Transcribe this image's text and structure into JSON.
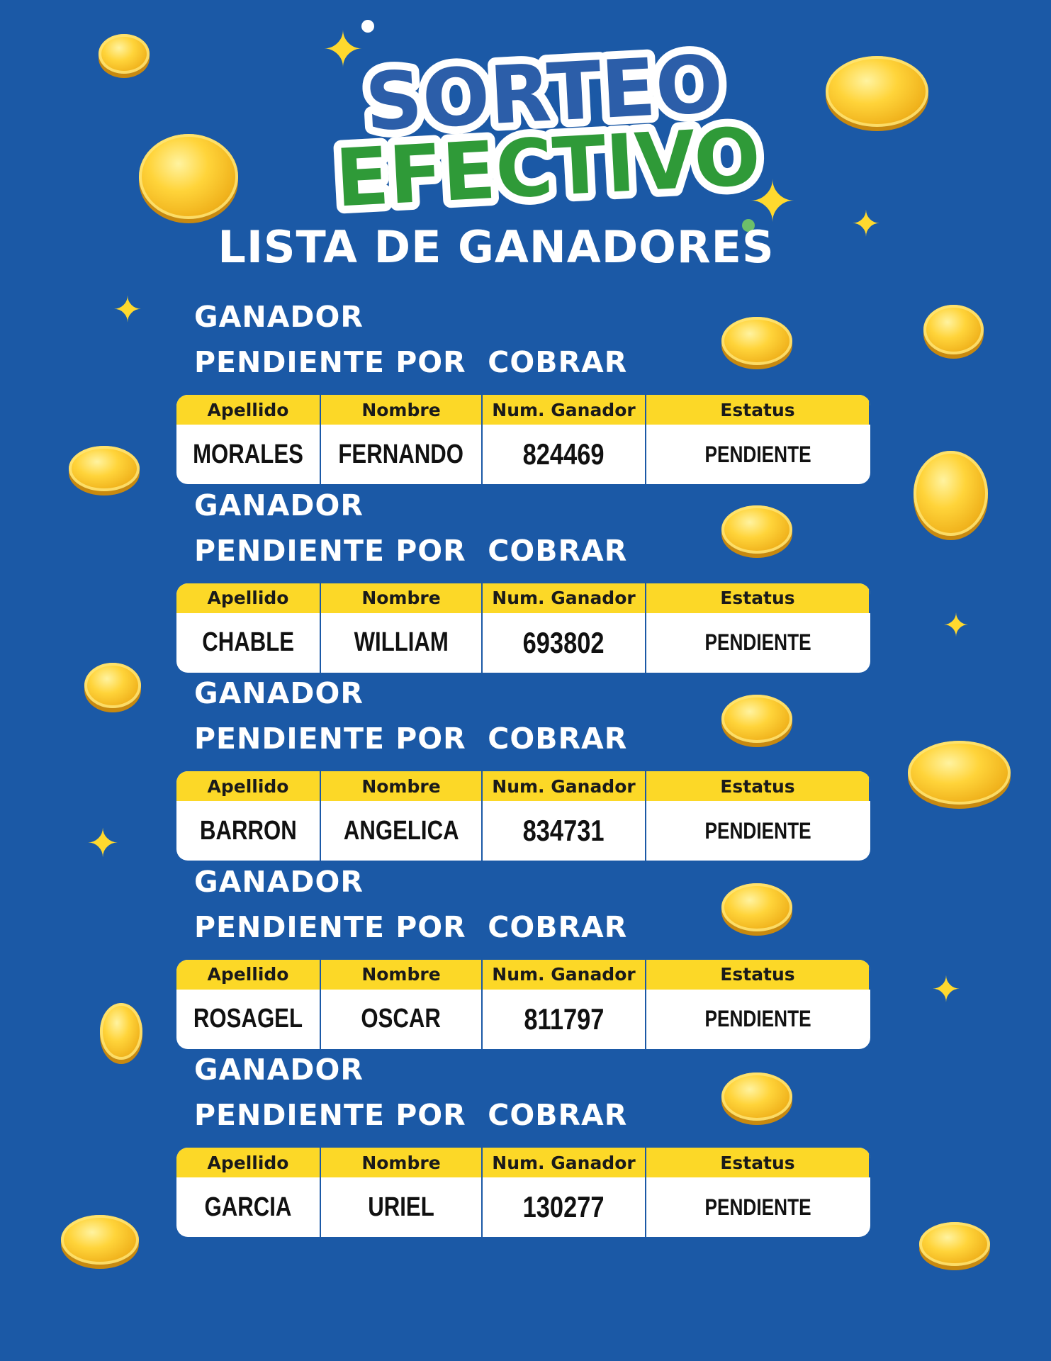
{
  "logo": {
    "line1": "SORTEO",
    "line2": "EFECTIVO",
    "line1_color": "#2c5ea9",
    "line2_color": "#2f9a38"
  },
  "title": "LISTA DE GANADORES",
  "colors": {
    "background": "#1b59a6",
    "header_yellow": "#fcd827",
    "coin": "#f5c12a"
  },
  "table_headers": [
    "Apellido",
    "Nombre",
    "Num. Ganador",
    "Estatus"
  ],
  "sections": [
    {
      "heading1": "GANADOR",
      "heading2": "PENDIENTE POR  COBRAR",
      "apellido": "MORALES",
      "nombre": "FERNANDO",
      "numero": "824469",
      "estatus": "PENDIENTE"
    },
    {
      "heading1": "GANADOR",
      "heading2": "PENDIENTE POR  COBRAR",
      "apellido": "CHABLE",
      "nombre": "WILLIAM",
      "numero": "693802",
      "estatus": "PENDIENTE"
    },
    {
      "heading1": "GANADOR",
      "heading2": "PENDIENTE POR  COBRAR",
      "apellido": "BARRON",
      "nombre": "ANGELICA",
      "numero": "834731",
      "estatus": "PENDIENTE"
    },
    {
      "heading1": "GANADOR",
      "heading2": "PENDIENTE POR  COBRAR",
      "apellido": "ROSAGEL",
      "nombre": "OSCAR",
      "numero": "811797",
      "estatus": "PENDIENTE"
    },
    {
      "heading1": "GANADOR",
      "heading2": "PENDIENTE POR  COBRAR",
      "apellido": "GARCIA",
      "nombre": "URIEL",
      "numero": "130277",
      "estatus": "PENDIENTE"
    }
  ]
}
